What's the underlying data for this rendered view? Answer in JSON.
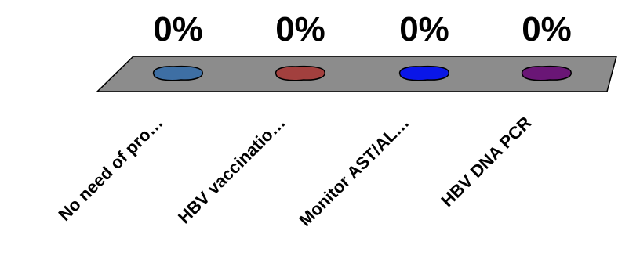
{
  "chart_data": {
    "type": "bar",
    "categories": [
      "No need of pro…",
      "HBV vaccinatio…",
      "Monitor AST/AL…",
      "HBV DNA  PCR"
    ],
    "values": [
      0,
      0,
      0,
      0
    ],
    "value_labels": [
      "0%",
      "0%",
      "0%",
      "0%"
    ],
    "colors": [
      "#3e6fa4",
      "#a2403e",
      "#0a16e8",
      "#6a1676"
    ],
    "floor_color": "#8c8c8c",
    "grid": false,
    "legend": "none"
  }
}
